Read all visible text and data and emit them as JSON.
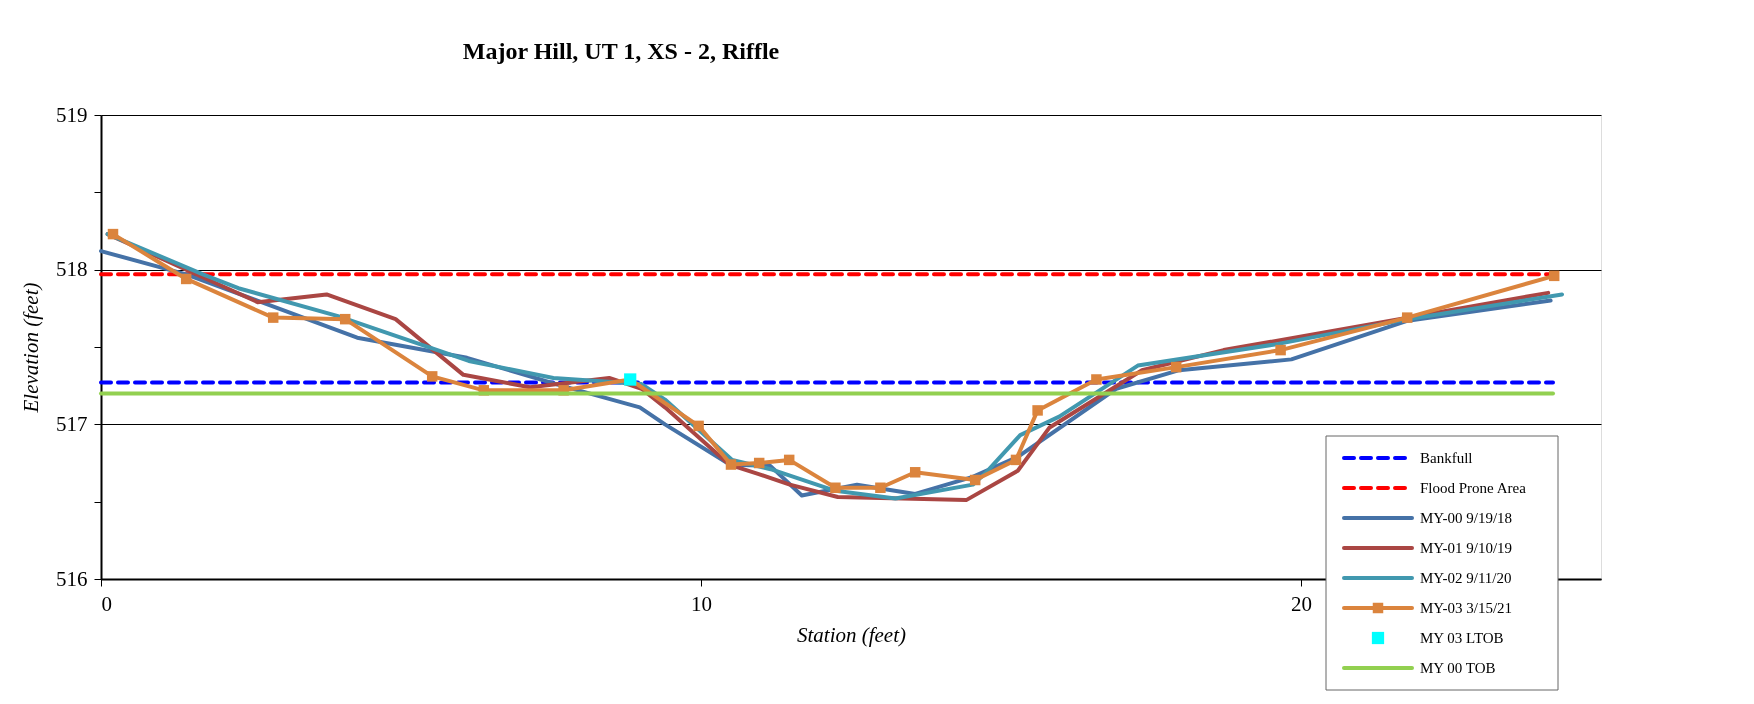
{
  "chart_data": {
    "type": "line",
    "title": "Major Hill, UT 1, XS - 2, Riffle",
    "xlabel": "Station (feet)",
    "ylabel": "Elevation (feet)",
    "xlim": [
      0,
      25
    ],
    "xticks": [
      0,
      10,
      20
    ],
    "ylim": [
      516,
      519
    ],
    "yticks": [
      516,
      {
        "value": 516.5,
        "label": null
      },
      517,
      {
        "value": 517.5,
        "label": null
      },
      518,
      {
        "value": 518.5,
        "label": null
      },
      519
    ],
    "grid": "y",
    "legend": "bottom right",
    "series": [
      {
        "name": "Bankfull",
        "color": "#0000ff",
        "line_style": "dashed",
        "x": [
          0,
          24.2
        ],
        "values": [
          517.27,
          517.27
        ]
      },
      {
        "name": "Flood Prone Area",
        "color": "#ff0000",
        "line_style": "dashed",
        "x": [
          0,
          24.2
        ],
        "values": [
          517.97,
          517.97
        ]
      },
      {
        "name": "MY-00 9/19/18",
        "color": "#4572a7",
        "line_style": "solid",
        "x": [
          0,
          1.42,
          4.27,
          6.1,
          7.67,
          8.98,
          9.4,
          10.48,
          11.16,
          11.68,
          12.6,
          13.57,
          14.53,
          15.28,
          16.92,
          17.97,
          19.84,
          21.78,
          24.16
        ],
        "values": [
          518.12,
          517.97,
          517.56,
          517.43,
          517.25,
          517.11,
          517.0,
          516.74,
          516.73,
          516.54,
          516.61,
          516.55,
          516.66,
          516.79,
          517.23,
          517.35,
          517.42,
          517.67,
          517.8
        ]
      },
      {
        "name": "MY-01 9/10/19",
        "color": "#aa4643",
        "line_style": "solid",
        "x": [
          0.11,
          2.61,
          3.76,
          4.91,
          6.04,
          7.15,
          8.47,
          9.01,
          9.4,
          10.47,
          10.95,
          11.48,
          12.28,
          14.42,
          15.28,
          15.81,
          17.35,
          18.71,
          24.12
        ],
        "values": [
          518.23,
          517.79,
          517.84,
          517.68,
          517.32,
          517.24,
          517.3,
          517.23,
          517.11,
          516.74,
          516.68,
          516.61,
          516.53,
          516.51,
          516.7,
          516.98,
          517.35,
          517.48,
          517.85
        ]
      },
      {
        "name": "MY-02 9/11/20",
        "color": "#4198af",
        "line_style": "solid",
        "x": [
          0.11,
          1.7,
          2.29,
          3.95,
          6.13,
          7.54,
          9.01,
          9.4,
          10.52,
          11.16,
          12.24,
          13.24,
          14.53,
          14.73,
          15.32,
          15.97,
          17.28,
          19.62,
          21.78,
          24.35
        ],
        "values": [
          518.23,
          517.97,
          517.88,
          517.7,
          517.41,
          517.3,
          517.26,
          517.16,
          516.77,
          516.71,
          516.57,
          516.52,
          516.61,
          516.68,
          516.93,
          517.05,
          517.38,
          517.52,
          517.68,
          517.84
        ]
      },
      {
        "name": "MY-03 3/15/21",
        "color": "#db843d",
        "line_style": "solid",
        "marker": "square",
        "x": [
          0.2,
          1.42,
          2.87,
          4.07,
          5.52,
          6.38,
          7.71,
          8.82,
          9.96,
          10.5,
          10.97,
          11.47,
          12.24,
          12.99,
          13.57,
          14.57,
          15.25,
          15.61,
          16.59,
          17.92,
          19.66,
          21.77,
          24.22
        ],
        "values": [
          518.23,
          517.94,
          517.69,
          517.68,
          517.31,
          517.22,
          517.22,
          517.29,
          516.99,
          516.74,
          516.75,
          516.77,
          516.59,
          516.59,
          516.69,
          516.64,
          516.77,
          517.09,
          517.29,
          517.37,
          517.48,
          517.69,
          517.96
        ]
      },
      {
        "name": "MY 03 LTOB",
        "type": "scatter",
        "color": "#00ffff",
        "marker": "square",
        "x": [
          8.82
        ],
        "values": [
          517.29
        ]
      },
      {
        "name": "MY 00 TOB",
        "color": "#92d050",
        "line_style": "solid",
        "x": [
          0,
          24.2
        ],
        "values": [
          517.2,
          517.2
        ]
      }
    ]
  }
}
